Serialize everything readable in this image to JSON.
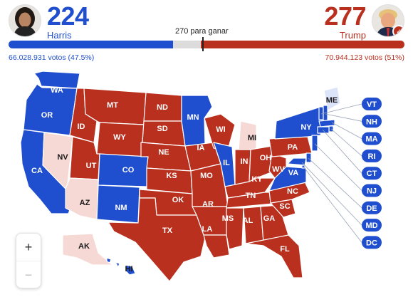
{
  "header": {
    "dem": {
      "votes": "224",
      "name": "Harris",
      "popular": "66.028.931 votos (47.5%)",
      "color": "#1f4ecf"
    },
    "rep": {
      "votes": "277",
      "name": "Trump",
      "popular": "70.944.123 votos (51%)",
      "color": "#b9301f"
    },
    "threshold_label": "270 para ganar",
    "electoral_total": 538,
    "winner_badge_icon": "checkmark-icon"
  },
  "legend_colors": {
    "dem": "#1f4ecf",
    "rep": "#b9301f",
    "lean_dem": "#dce4fa",
    "lean_rep": "#f6d8d4",
    "undecided": "#dcdcdc"
  },
  "states": [
    {
      "code": "WA",
      "party": "dem"
    },
    {
      "code": "OR",
      "party": "dem"
    },
    {
      "code": "CA",
      "party": "dem"
    },
    {
      "code": "NV",
      "party": "lean_rep"
    },
    {
      "code": "ID",
      "party": "rep"
    },
    {
      "code": "MT",
      "party": "rep"
    },
    {
      "code": "WY",
      "party": "rep"
    },
    {
      "code": "UT",
      "party": "rep"
    },
    {
      "code": "AZ",
      "party": "lean_rep"
    },
    {
      "code": "CO",
      "party": "dem"
    },
    {
      "code": "NM",
      "party": "dem"
    },
    {
      "code": "ND",
      "party": "rep"
    },
    {
      "code": "SD",
      "party": "rep"
    },
    {
      "code": "NE",
      "party": "rep"
    },
    {
      "code": "KS",
      "party": "rep"
    },
    {
      "code": "OK",
      "party": "rep"
    },
    {
      "code": "TX",
      "party": "rep"
    },
    {
      "code": "MN",
      "party": "dem"
    },
    {
      "code": "IA",
      "party": "rep"
    },
    {
      "code": "MO",
      "party": "rep"
    },
    {
      "code": "AR",
      "party": "rep"
    },
    {
      "code": "LA",
      "party": "rep"
    },
    {
      "code": "WI",
      "party": "rep"
    },
    {
      "code": "IL",
      "party": "dem"
    },
    {
      "code": "MI",
      "party": "lean_rep"
    },
    {
      "code": "IN",
      "party": "rep"
    },
    {
      "code": "OH",
      "party": "rep"
    },
    {
      "code": "KY",
      "party": "rep"
    },
    {
      "code": "TN",
      "party": "rep"
    },
    {
      "code": "MS",
      "party": "rep"
    },
    {
      "code": "AL",
      "party": "rep"
    },
    {
      "code": "GA",
      "party": "rep"
    },
    {
      "code": "FL",
      "party": "rep"
    },
    {
      "code": "SC",
      "party": "rep"
    },
    {
      "code": "NC",
      "party": "rep"
    },
    {
      "code": "VA",
      "party": "dem"
    },
    {
      "code": "WV",
      "party": "rep"
    },
    {
      "code": "PA",
      "party": "rep"
    },
    {
      "code": "NY",
      "party": "dem"
    },
    {
      "code": "ME",
      "party": "lean_dem"
    },
    {
      "code": "AK",
      "party": "lean_rep"
    },
    {
      "code": "HI",
      "party": "dem"
    },
    {
      "code": "VT",
      "party": "dem"
    },
    {
      "code": "NH",
      "party": "dem"
    },
    {
      "code": "MA",
      "party": "dem"
    },
    {
      "code": "RI",
      "party": "dem"
    },
    {
      "code": "CT",
      "party": "dem"
    },
    {
      "code": "NJ",
      "party": "dem"
    },
    {
      "code": "DE",
      "party": "dem"
    },
    {
      "code": "MD",
      "party": "dem"
    },
    {
      "code": "DC",
      "party": "dem"
    }
  ],
  "controls": {
    "zoom_in": "+",
    "zoom_out": "−"
  }
}
